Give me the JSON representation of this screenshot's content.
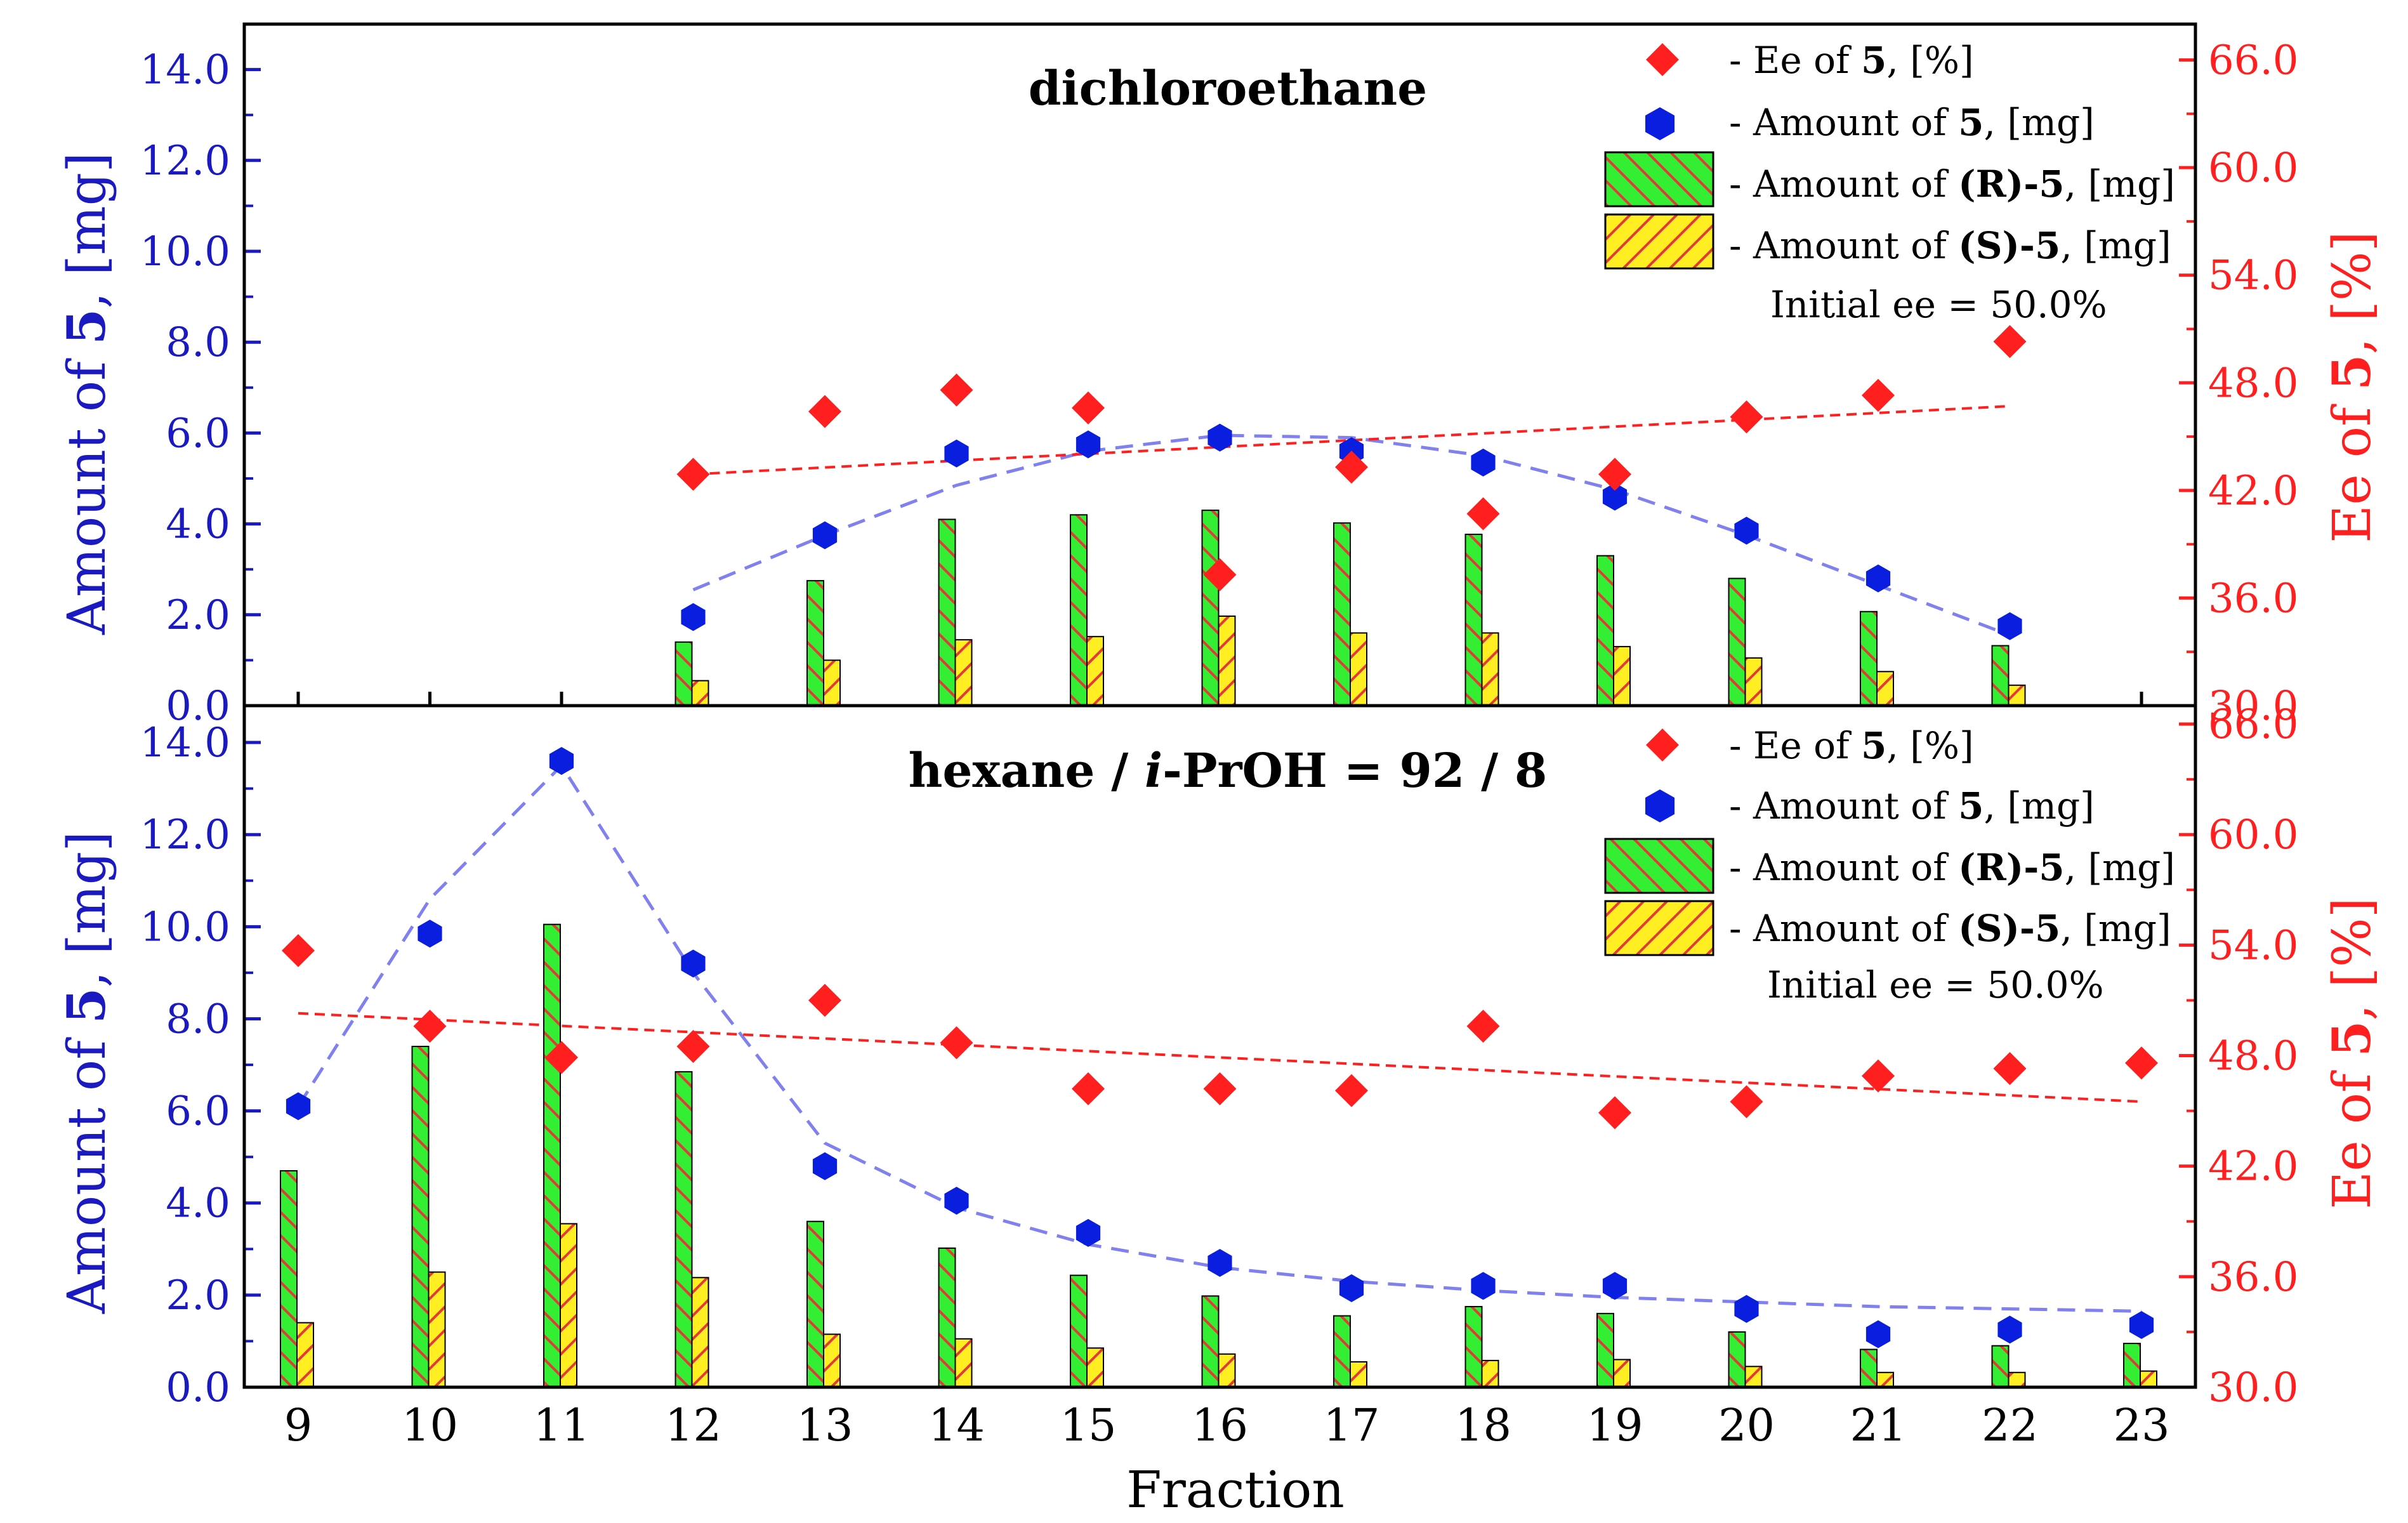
{
  "colors": {
    "left_axis": "#1a1ac0",
    "right_axis": "#ff1f1f",
    "amount_marker": "#0a1ee0",
    "ee_marker": "#ff1f1f",
    "bar_r_fill": "#33ee33",
    "bar_r_hatch": "#e03a3a",
    "bar_s_fill": "#ffee22",
    "bar_s_hatch": "#e03a3a",
    "amount_fit_line": "#8080ee",
    "ee_fit_line": "#ff1f1f"
  },
  "axes": {
    "x_label": "Fraction",
    "x_ticks": [
      "9",
      "10",
      "11",
      "12",
      "13",
      "14",
      "15",
      "16",
      "17",
      "18",
      "19",
      "20",
      "21",
      "22",
      "23"
    ],
    "left_label_prefix": "Amount of ",
    "left_label_bold": "5",
    "left_label_suffix": ", [mg]",
    "right_label_prefix": "Ee of ",
    "right_label_bold": "5",
    "right_label_suffix": ", [%]",
    "left_ticks": [
      "0.0",
      "2.0",
      "4.0",
      "6.0",
      "8.0",
      "10.0",
      "12.0",
      "14.0"
    ],
    "right_ticks": [
      "30.0",
      "36.0",
      "42.0",
      "48.0",
      "54.0",
      "60.0",
      "66.0"
    ]
  },
  "legend": {
    "ee": {
      "prefix": "- Ee of ",
      "bold": "5",
      "suffix": ", [%]"
    },
    "amount": {
      "prefix": "- Amount of ",
      "bold": "5",
      "suffix": ", [mg]"
    },
    "r_amount": {
      "prefix": "- Amount of ",
      "bold": "(R)-5",
      "suffix": ", [mg]"
    },
    "s_amount": {
      "prefix": "- Amount of ",
      "bold": "(S)-5",
      "suffix": ", [mg]"
    },
    "initial_ee": "Initial ee = 50.0%"
  },
  "chart_data": [
    {
      "type": "bar",
      "title": "dichloroethane",
      "xlabel": "Fraction",
      "ylabel": "Amount of 5, [mg]",
      "y2label": "Ee of 5, [%]",
      "ylim": [
        0,
        15
      ],
      "y2lim": [
        30,
        68
      ],
      "categories": [
        9,
        10,
        11,
        12,
        13,
        14,
        15,
        16,
        17,
        18,
        19,
        20,
        21,
        22,
        23
      ],
      "series": [
        {
          "name": "Amount of (R)-5, [mg]",
          "kind": "bar",
          "axis": "left",
          "x": [
            12,
            13,
            14,
            15,
            16,
            17,
            18,
            19,
            20,
            21,
            22
          ],
          "values": [
            1.4,
            2.75,
            4.1,
            4.2,
            4.3,
            4.02,
            3.77,
            3.3,
            2.8,
            2.07,
            1.32
          ]
        },
        {
          "name": "Amount of (S)-5, [mg]",
          "kind": "bar",
          "axis": "left",
          "x": [
            12,
            13,
            14,
            15,
            16,
            17,
            18,
            19,
            20,
            21,
            22
          ],
          "values": [
            0.55,
            1.0,
            1.45,
            1.52,
            1.97,
            1.6,
            1.6,
            1.3,
            1.05,
            0.75,
            0.45
          ]
        },
        {
          "name": "Amount of 5, [mg]",
          "kind": "scatter",
          "axis": "left",
          "x": [
            12,
            13,
            14,
            15,
            16,
            17,
            18,
            19,
            20,
            21,
            22
          ],
          "values": [
            1.95,
            3.75,
            5.55,
            5.75,
            5.9,
            5.6,
            5.35,
            4.6,
            3.85,
            2.8,
            1.75
          ]
        },
        {
          "name": "Ee of 5, [%]",
          "kind": "scatter",
          "axis": "right",
          "x": [
            12,
            13,
            14,
            15,
            16,
            17,
            18,
            19,
            20,
            21,
            22
          ],
          "values": [
            42.9,
            46.4,
            47.6,
            46.6,
            37.3,
            43.3,
            40.7,
            42.9,
            46.1,
            47.3,
            50.3
          ]
        }
      ],
      "fits": {
        "amount": {
          "x": [
            12,
            13,
            14,
            15,
            16,
            17,
            18,
            19,
            20,
            21,
            22
          ],
          "values": [
            2.55,
            3.75,
            4.85,
            5.6,
            5.95,
            5.9,
            5.5,
            4.75,
            3.75,
            2.65,
            1.55
          ]
        },
        "ee": {
          "x": [
            12,
            22
          ],
          "values": [
            42.9,
            46.7
          ]
        }
      },
      "initial_ee": 50.0
    },
    {
      "type": "bar",
      "title": "hexane / i-PrOH = 92 / 8",
      "xlabel": "Fraction",
      "ylabel": "Amount of 5, [mg]",
      "y2label": "Ee of 5, [%]",
      "ylim": [
        0,
        14.8
      ],
      "y2lim": [
        30,
        67
      ],
      "categories": [
        9,
        10,
        11,
        12,
        13,
        14,
        15,
        16,
        17,
        18,
        19,
        20,
        21,
        22,
        23
      ],
      "series": [
        {
          "name": "Amount of (R)-5, [mg]",
          "kind": "bar",
          "axis": "left",
          "x": [
            9,
            10,
            11,
            12,
            13,
            14,
            15,
            16,
            17,
            18,
            19,
            20,
            21,
            22,
            23
          ],
          "values": [
            4.7,
            7.4,
            10.05,
            6.85,
            3.6,
            3.02,
            2.43,
            1.98,
            1.55,
            1.75,
            1.6,
            1.2,
            0.82,
            0.9,
            0.95
          ]
        },
        {
          "name": "Amount of (S)-5, [mg]",
          "kind": "bar",
          "axis": "left",
          "x": [
            9,
            10,
            11,
            12,
            13,
            14,
            15,
            16,
            17,
            18,
            19,
            20,
            21,
            22,
            23
          ],
          "values": [
            1.4,
            2.5,
            3.55,
            2.38,
            1.15,
            1.05,
            0.85,
            0.72,
            0.55,
            0.58,
            0.6,
            0.45,
            0.32,
            0.32,
            0.35
          ]
        },
        {
          "name": "Amount of 5, [mg]",
          "kind": "scatter",
          "axis": "left",
          "x": [
            9,
            10,
            11,
            12,
            13,
            14,
            15,
            16,
            17,
            18,
            19,
            20,
            21,
            22,
            23
          ],
          "values": [
            6.1,
            9.85,
            13.6,
            9.2,
            4.8,
            4.05,
            3.35,
            2.7,
            2.15,
            2.2,
            2.2,
            1.7,
            1.15,
            1.25,
            1.35
          ]
        },
        {
          "name": "Ee of 5, [%]",
          "kind": "scatter",
          "axis": "right",
          "x": [
            9,
            10,
            11,
            12,
            13,
            14,
            15,
            16,
            17,
            18,
            19,
            20,
            21,
            22,
            23
          ],
          "values": [
            53.7,
            49.6,
            47.9,
            48.5,
            51.0,
            48.7,
            46.2,
            46.2,
            46.1,
            49.6,
            44.9,
            45.5,
            46.9,
            47.3,
            47.6
          ]
        }
      ],
      "fits": {
        "amount": {
          "x": [
            9,
            10,
            11,
            12,
            13,
            14,
            15,
            16,
            17,
            18,
            19,
            20,
            21,
            22,
            23
          ],
          "values": [
            6.1,
            10.6,
            13.5,
            9.0,
            5.3,
            3.9,
            3.1,
            2.6,
            2.3,
            2.1,
            1.95,
            1.85,
            1.75,
            1.7,
            1.65
          ]
        },
        "ee": {
          "x": [
            9,
            23
          ],
          "values": [
            50.3,
            45.5
          ]
        }
      },
      "initial_ee": 50.0
    }
  ]
}
